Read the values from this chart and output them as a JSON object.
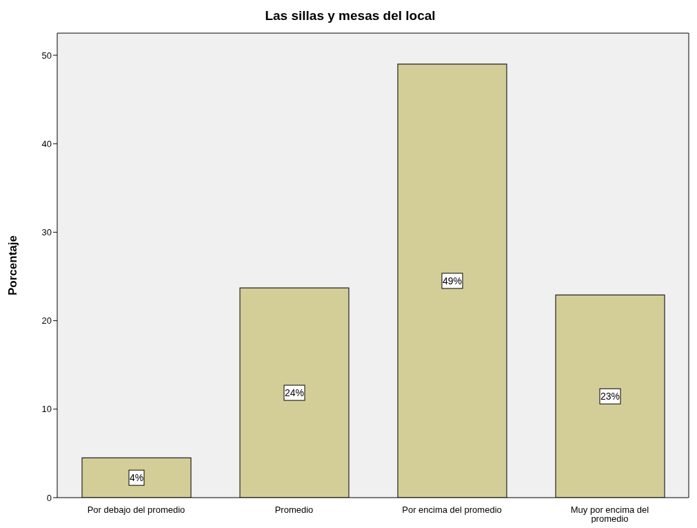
{
  "chart_data": {
    "type": "bar",
    "title": "Las sillas y mesas del local",
    "ylabel": "Porcentaje",
    "categories": [
      "Por debajo del promedio",
      "Promedio",
      "Por encima del promedio",
      "Muy por encima del promedio"
    ],
    "values": [
      4.5,
      23.7,
      49.0,
      22.9
    ],
    "value_labels": [
      "4%",
      "24%",
      "49%",
      "23%"
    ],
    "color": "#d3ce97",
    "ylim": [
      0,
      52.5
    ],
    "yticks": [
      0,
      10,
      20,
      30,
      40,
      50
    ],
    "grid": false
  }
}
